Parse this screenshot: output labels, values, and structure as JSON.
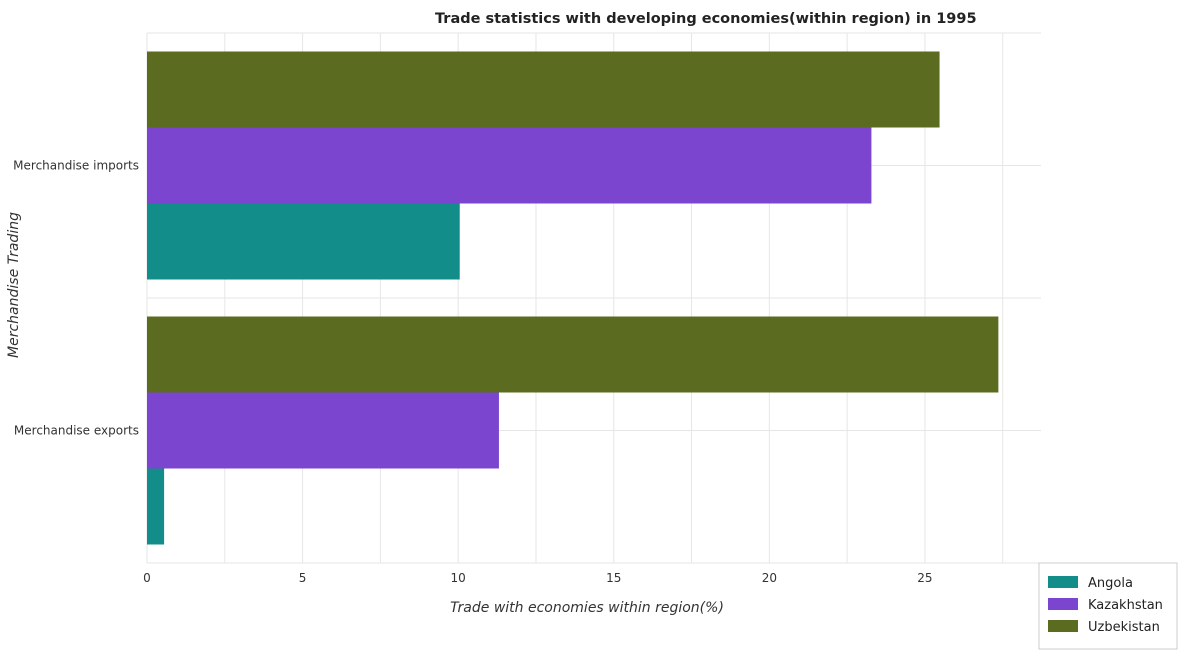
{
  "chart_data": {
    "type": "bar",
    "orientation": "horizontal",
    "title": "Trade statistics with developing economies(within region) in 1995",
    "xlabel": "Trade with economies within region(%)",
    "ylabel": "Merchandise Trading",
    "categories": [
      "Merchandise exports",
      "Merchandise imports"
    ],
    "series": [
      {
        "name": "Angola",
        "color": "#138d8a",
        "values": [
          0.55,
          10.05
        ]
      },
      {
        "name": "Kazakhstan",
        "color": "#7b45cf",
        "values": [
          11.31,
          23.28
        ]
      },
      {
        "name": "Uzbekistan",
        "color": "#5b6b1f",
        "values": [
          27.36,
          25.47
        ]
      }
    ],
    "xlim": [
      0,
      28.73
    ],
    "xticks": [
      "0",
      "5",
      "10",
      "15",
      "20",
      "25"
    ],
    "xtick_values": [
      0,
      5,
      10,
      15,
      20,
      25
    ],
    "grid": true,
    "legend_position": "bottom-right"
  }
}
